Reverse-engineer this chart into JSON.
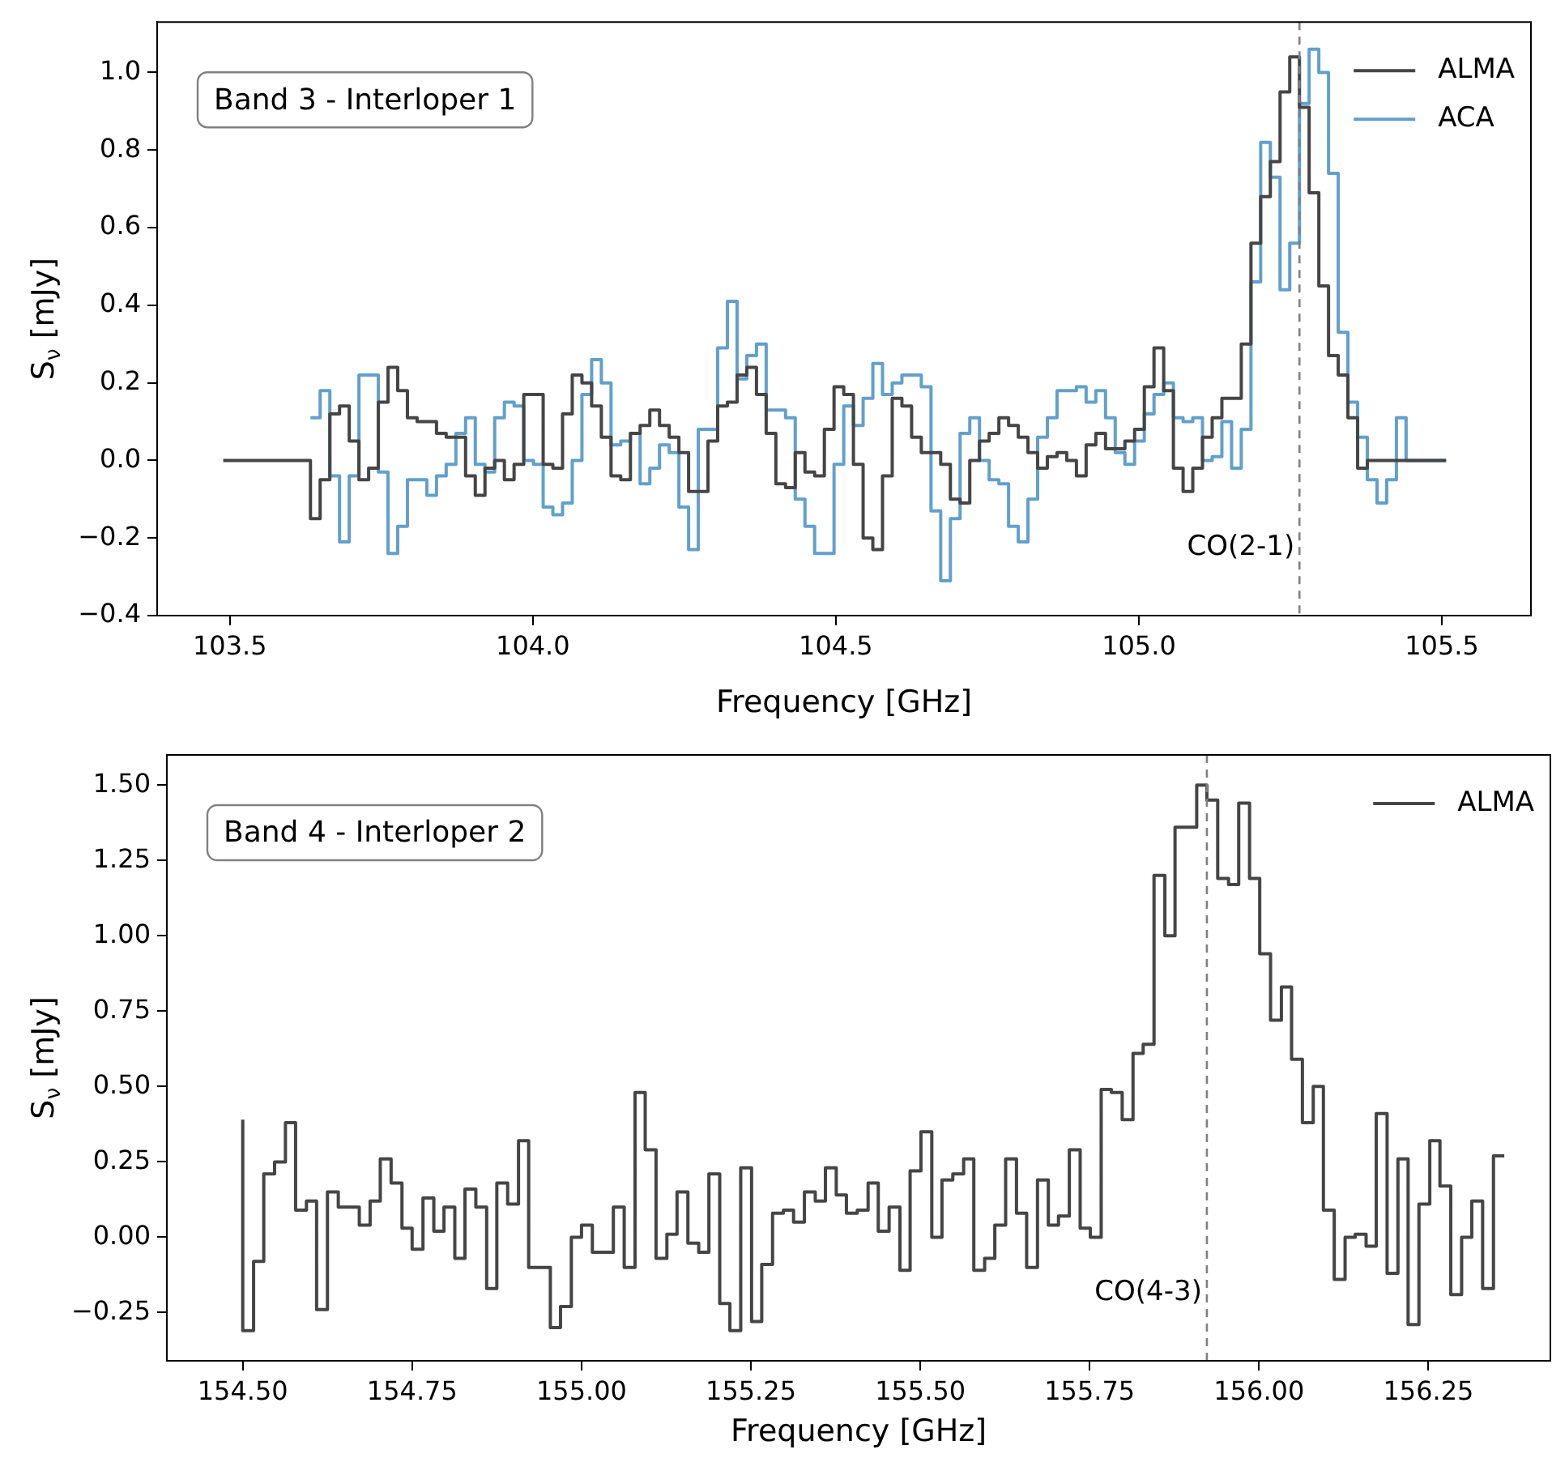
{
  "chart_data": [
    {
      "type": "step",
      "xlabel": "Frequency [GHz]",
      "ylabel": "S$_{ν}$ [mJy]",
      "annotations": [
        "Band 3 - Interloper 1"
      ],
      "x": [
        103.489,
        103.633,
        103.649,
        103.665,
        103.681,
        103.697,
        103.713,
        103.729,
        103.745,
        103.761,
        103.777,
        103.793,
        103.809,
        103.825,
        103.841,
        103.857,
        103.873,
        103.889,
        103.905,
        103.921,
        103.937,
        103.953,
        103.969,
        103.985,
        104.001,
        104.017,
        104.033,
        104.049,
        104.065,
        104.081,
        104.097,
        104.113,
        104.129,
        104.145,
        104.161,
        104.177,
        104.193,
        104.209,
        104.225,
        104.241,
        104.257,
        104.273,
        104.289,
        104.305,
        104.321,
        104.337,
        104.353,
        104.369,
        104.385,
        104.401,
        104.417,
        104.433,
        104.449,
        104.465,
        104.481,
        104.497,
        104.513,
        104.529,
        104.545,
        104.561,
        104.577,
        104.593,
        104.609,
        104.625,
        104.641,
        104.657,
        104.673,
        104.689,
        104.705,
        104.721,
        104.737,
        104.753,
        104.769,
        104.785,
        104.801,
        104.817,
        104.833,
        104.849,
        104.865,
        104.881,
        104.897,
        104.913,
        104.929,
        104.945,
        104.961,
        104.977,
        104.993,
        105.009,
        105.025,
        105.041,
        105.057,
        105.073,
        105.089,
        105.105,
        105.121,
        105.137,
        105.153,
        105.169,
        105.185,
        105.201,
        105.217,
        105.233,
        105.249,
        105.265,
        105.281,
        105.297,
        105.313,
        105.329,
        105.345,
        105.361,
        105.377,
        105.393,
        105.409,
        105.425,
        105.441,
        105.507
      ],
      "series": [
        {
          "name": "ALMA",
          "color": "#454545",
          "values": [
            0,
            0,
            -0.15,
            -0.05,
            0.12,
            0.14,
            0.05,
            -0.05,
            -0.02,
            0.15,
            0.24,
            0.18,
            0.11,
            0.1,
            0.1,
            0.07,
            0.06,
            0.06,
            -0.04,
            -0.09,
            -0.02,
            0.0,
            -0.05,
            -0.01,
            0.17,
            0.17,
            -0.01,
            -0.02,
            0.12,
            0.22,
            0.2,
            0.14,
            0.06,
            -0.04,
            -0.05,
            0.07,
            0.09,
            0.13,
            0.09,
            0.06,
            0.02,
            -0.08,
            -0.08,
            0.05,
            0.14,
            0.15,
            0.22,
            0.24,
            0.17,
            0.07,
            -0.06,
            -0.07,
            0.02,
            -0.03,
            -0.04,
            0.08,
            0.19,
            0.17,
            -0.01,
            -0.2,
            -0.23,
            -0.04,
            0.16,
            0.14,
            0.06,
            0.02,
            0.02,
            -0.01,
            -0.1,
            -0.11,
            0.0,
            0.05,
            0.07,
            0.11,
            0.09,
            0.06,
            0.02,
            -0.02,
            0.01,
            0.02,
            0.0,
            -0.04,
            0.04,
            0.07,
            0.03,
            0.03,
            0.05,
            0.08,
            0.19,
            0.29,
            0.18,
            -0.02,
            -0.08,
            -0.02,
            0.06,
            0.11,
            0.16,
            0.16,
            0.3,
            0.56,
            0.68,
            0.77,
            0.95,
            1.04,
            0.91,
            0.69,
            0.45,
            0.27,
            0.22,
            0.11,
            -0.02,
            0,
            0,
            0,
            0,
            0
          ]
        },
        {
          "name": "ACA",
          "color": "#62a0cb",
          "values": [
            null,
            0.11,
            0.11,
            0.18,
            -0.04,
            -0.21,
            -0.04,
            0.22,
            0.22,
            -0.03,
            -0.24,
            -0.17,
            -0.05,
            -0.05,
            -0.09,
            -0.04,
            -0.01,
            0.07,
            0.11,
            -0.01,
            -0.03,
            0.11,
            0.15,
            0.14,
            0.0,
            -0.01,
            -0.12,
            -0.14,
            -0.11,
            0.0,
            0.17,
            0.26,
            0.2,
            0.04,
            0.05,
            0.07,
            -0.06,
            -0.02,
            0.04,
            0.02,
            -0.12,
            -0.23,
            0.08,
            0.08,
            0.29,
            0.41,
            0.21,
            0.27,
            0.3,
            0.13,
            0.13,
            0.11,
            -0.1,
            -0.17,
            -0.24,
            -0.24,
            -0.01,
            0.14,
            0.09,
            0.16,
            0.25,
            0.17,
            0.2,
            0.22,
            0.22,
            0.19,
            -0.13,
            -0.31,
            -0.15,
            0.07,
            0.11,
            0.0,
            -0.05,
            -0.06,
            -0.17,
            -0.21,
            -0.1,
            0.06,
            0.11,
            0.18,
            0.18,
            0.19,
            0.15,
            0.18,
            0.11,
            0.02,
            -0.01,
            0.05,
            0.12,
            0.17,
            0.2,
            0.11,
            0.1,
            0.11,
            0.0,
            0.01,
            0.1,
            -0.02,
            0.08,
            0.46,
            0.82,
            0.73,
            0.44,
            0.56,
            0.92,
            1.06,
            1.0,
            0.74,
            0.33,
            0.15,
            0.06,
            -0.05,
            -0.11,
            -0.05,
            0.11,
            0
          ]
        }
      ],
      "xlim": [
        103.38,
        105.647
      ],
      "ylim": [
        -0.4,
        1.13
      ],
      "xticks": [
        {
          "value": 103.5,
          "label": "103.5"
        },
        {
          "value": 104,
          "label": "104.0"
        },
        {
          "value": 104.5,
          "label": "104.5"
        },
        {
          "value": 105,
          "label": "105.0"
        },
        {
          "value": 105.5,
          "label": "105.5"
        }
      ],
      "yticks": [
        {
          "value": -0.4,
          "label": "−0.4"
        },
        {
          "value": -0.2,
          "label": "−0.2"
        },
        {
          "value": 0,
          "label": "0.0"
        },
        {
          "value": 0.2,
          "label": "0.2"
        },
        {
          "value": 0.4,
          "label": "0.4"
        },
        {
          "value": 0.6,
          "label": "0.6"
        },
        {
          "value": 0.8,
          "label": "0.8"
        },
        {
          "value": 1,
          "label": "1.0"
        }
      ],
      "ref_lines": [
        {
          "axis": "x",
          "value": 105.265,
          "label": "CO(2-1)",
          "color": "#808080",
          "line_style": "dashed"
        }
      ],
      "legend": "top right",
      "grid": false
    },
    {
      "type": "step",
      "xlabel": "Frequency [GHz]",
      "ylabel": "S$_{ν}$ [mJy]",
      "annotations": [
        "Band 4 - Interloper 2"
      ],
      "x": [
        154.5,
        154.516,
        154.531,
        154.547,
        154.563,
        154.578,
        154.594,
        154.609,
        154.625,
        154.641,
        154.656,
        154.672,
        154.688,
        154.703,
        154.719,
        154.735,
        154.75,
        154.766,
        154.782,
        154.797,
        154.813,
        154.828,
        154.844,
        154.86,
        154.875,
        154.891,
        154.907,
        154.922,
        154.938,
        154.954,
        154.969,
        154.985,
        155.0,
        155.016,
        155.032,
        155.047,
        155.063,
        155.079,
        155.094,
        155.11,
        155.126,
        155.141,
        155.157,
        155.173,
        155.188,
        155.204,
        155.219,
        155.235,
        155.251,
        155.266,
        155.282,
        155.298,
        155.313,
        155.329,
        155.345,
        155.36,
        155.376,
        155.391,
        155.407,
        155.423,
        155.438,
        155.454,
        155.47,
        155.485,
        155.501,
        155.517,
        155.532,
        155.548,
        155.564,
        155.579,
        155.595,
        155.61,
        155.626,
        155.642,
        155.657,
        155.673,
        155.689,
        155.704,
        155.72,
        155.736,
        155.751,
        155.767,
        155.782,
        155.798,
        155.814,
        155.829,
        155.845,
        155.861,
        155.876,
        155.892,
        155.908,
        155.923,
        155.939,
        155.955,
        155.97,
        155.986,
        156.001,
        156.017,
        156.033,
        156.048,
        156.064,
        156.08,
        156.095,
        156.111,
        156.127,
        156.142,
        156.158,
        156.173,
        156.189,
        156.205,
        156.22,
        156.236,
        156.252,
        156.267,
        156.283,
        156.299,
        156.314,
        156.33,
        156.346,
        156.362
      ],
      "series": [
        {
          "name": "ALMA",
          "color": "#454545",
          "values": [
            0.39,
            -0.31,
            -0.08,
            0.21,
            0.25,
            0.38,
            0.09,
            0.12,
            -0.24,
            0.15,
            0.1,
            0.1,
            0.04,
            0.12,
            0.26,
            0.18,
            0.03,
            -0.04,
            0.13,
            0.02,
            0.1,
            -0.07,
            0.16,
            0.1,
            -0.17,
            0.18,
            0.11,
            0.32,
            -0.1,
            -0.1,
            -0.3,
            -0.23,
            0.0,
            0.04,
            -0.05,
            -0.05,
            0.1,
            -0.1,
            0.48,
            0.29,
            -0.07,
            0.01,
            0.15,
            -0.02,
            -0.05,
            0.21,
            -0.22,
            -0.31,
            0.23,
            -0.28,
            -0.09,
            0.08,
            0.09,
            0.05,
            0.15,
            0.12,
            0.23,
            0.14,
            0.08,
            0.09,
            0.18,
            0.02,
            0.1,
            -0.11,
            0.22,
            0.35,
            0.0,
            0.19,
            0.21,
            0.26,
            -0.11,
            -0.07,
            0.04,
            0.26,
            0.08,
            -0.1,
            0.19,
            0.04,
            0.07,
            0.29,
            0.03,
            0.0,
            0.49,
            0.48,
            0.39,
            0.61,
            0.64,
            1.2,
            1.0,
            1.36,
            1.36,
            1.5,
            1.45,
            1.19,
            1.17,
            1.44,
            1.19,
            0.94,
            0.72,
            0.83,
            0.59,
            0.38,
            0.5,
            0.09,
            -0.14,
            0.0,
            0.01,
            -0.03,
            0.41,
            -0.12,
            0.26,
            -0.29,
            0.11,
            0.32,
            0.17,
            -0.19,
            0.0,
            0.12,
            -0.17,
            0.27
          ]
        }
      ],
      "xlim": [
        154.388,
        156.43
      ],
      "ylim": [
        -0.41,
        1.6
      ],
      "xticks": [
        {
          "value": 154.5,
          "label": "154.50"
        },
        {
          "value": 154.75,
          "label": "154.75"
        },
        {
          "value": 155,
          "label": "155.00"
        },
        {
          "value": 155.25,
          "label": "155.25"
        },
        {
          "value": 155.5,
          "label": "155.50"
        },
        {
          "value": 155.75,
          "label": "155.75"
        },
        {
          "value": 156,
          "label": "156.00"
        },
        {
          "value": 156.25,
          "label": "156.25"
        }
      ],
      "yticks": [
        {
          "value": -0.25,
          "label": "−0.25"
        },
        {
          "value": 0,
          "label": "0.00"
        },
        {
          "value": 0.25,
          "label": "0.25"
        },
        {
          "value": 0.5,
          "label": "0.50"
        },
        {
          "value": 0.75,
          "label": "0.75"
        },
        {
          "value": 1,
          "label": "1.00"
        },
        {
          "value": 1.25,
          "label": "1.25"
        },
        {
          "value": 1.5,
          "label": "1.50"
        }
      ],
      "ref_lines": [
        {
          "axis": "x",
          "value": 155.923,
          "label": "CO(4-3)",
          "color": "#808080",
          "line_style": "dashed"
        }
      ],
      "legend": "top right",
      "grid": false
    }
  ]
}
